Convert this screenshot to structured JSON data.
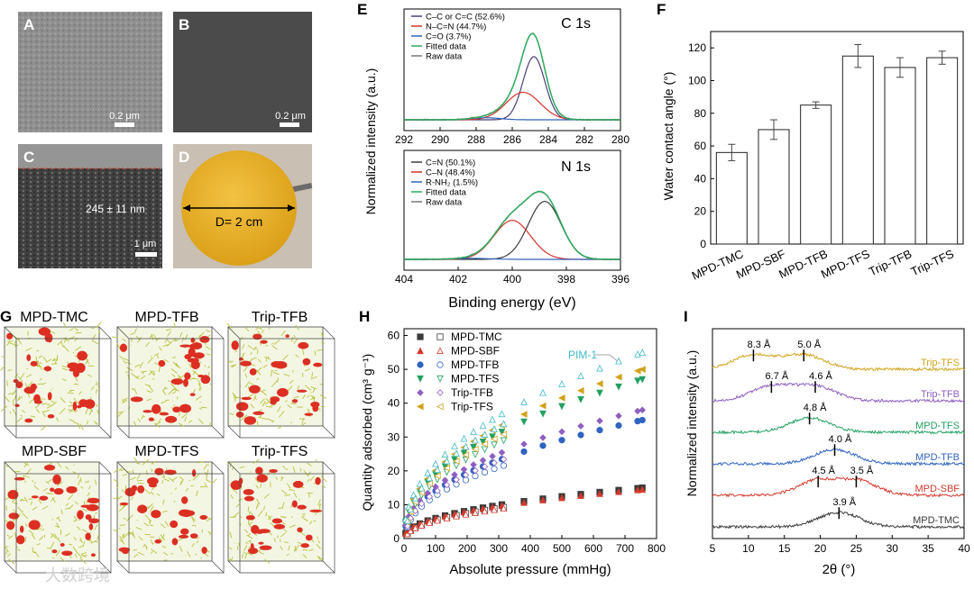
{
  "panel_letters": [
    "A",
    "B",
    "C",
    "D",
    "E",
    "F",
    "G",
    "H",
    "I"
  ],
  "sem": {
    "a_scale": "0.2 μm",
    "b_scale": "0.2 μm",
    "c_thickness": "245 ± 11 nm",
    "c_scale": "1 μm",
    "d_diameter": "D= 2 cm"
  },
  "models": {
    "labels": [
      "MPD-TMC",
      "MPD-TFB",
      "Trip-TFB",
      "MPD-SBF",
      "MPD-TFS",
      "Trip-TFS"
    ]
  },
  "watermark": "大数跨境",
  "colors": {
    "cc": "#4a3f7a",
    "cn": "#d4322b",
    "co": "#3062b8",
    "fit": "#2eaa5e",
    "raw": "#777777",
    "cnN": "#3b3b3b",
    "mpd_tmc": "#3a3a3a",
    "mpd_sbf": "#d33a2c",
    "mpd_tfb": "#2f63c0",
    "mpd_tfs": "#23a060",
    "trip_tfb": "#8e5fc0",
    "trip_tfs": "#d1a21a",
    "pim": "#3fb9c9"
  },
  "chart_data": [
    {
      "panel": "E-top",
      "type": "line",
      "title": "C 1s",
      "ylabel": "Normalized intensity (a.u.)",
      "xlim": [
        292,
        280
      ],
      "xticks": [
        292,
        290,
        288,
        286,
        284,
        282,
        280
      ],
      "legend": [
        "C–C or C=C (52.6%)",
        "N–C=N (44.7%)",
        "C=O (3.7%)",
        "Fitted data",
        "Raw data"
      ],
      "peaks": [
        {
          "name": "C–C or C=C",
          "center": 284.8,
          "height": 0.62,
          "width": 0.9
        },
        {
          "name": "N–C=N",
          "center": 285.4,
          "height": 0.27,
          "width": 1.4
        },
        {
          "name": "C=O",
          "center": 287.5,
          "height": 0.02,
          "width": 1.2
        }
      ]
    },
    {
      "panel": "E-bottom",
      "type": "line",
      "title": "N 1s",
      "xlabel": "Binding energy (eV)",
      "xlim": [
        404,
        396
      ],
      "xticks": [
        404,
        402,
        400,
        398,
        396
      ],
      "legend": [
        "C=N (50.1%)",
        "C–N (48.4%)",
        "R-NH₂ (1.5%)",
        "Fitted data",
        "Raw data"
      ],
      "peaks": [
        {
          "name": "C=N",
          "center": 398.8,
          "height": 0.58,
          "width": 0.9
        },
        {
          "name": "C–N",
          "center": 400.0,
          "height": 0.39,
          "width": 1.0
        },
        {
          "name": "R-NH2",
          "center": 401.5,
          "height": 0.01,
          "width": 1.0
        }
      ]
    },
    {
      "panel": "F",
      "type": "bar",
      "ylabel": "Water contact angle (°)",
      "ylim": [
        0,
        130
      ],
      "yticks": [
        0,
        20,
        40,
        60,
        80,
        100,
        120
      ],
      "categories": [
        "MPD-TMC",
        "MPD-SBF",
        "MPD-TFB",
        "MPD-TFS",
        "Trip-TFB",
        "Trip-TFS"
      ],
      "values": [
        56,
        70,
        85,
        115,
        108,
        114
      ],
      "errors": [
        5,
        6,
        2,
        7,
        6,
        4
      ]
    },
    {
      "panel": "H",
      "type": "scatter",
      "xlabel": "Absolute pressure (mmHg)",
      "ylabel": "Quantity adsorbed (cm³ g⁻¹)",
      "xlim": [
        0,
        800
      ],
      "ylim": [
        0,
        62
      ],
      "xticks": [
        0,
        100,
        200,
        300,
        400,
        500,
        600,
        700,
        800
      ],
      "yticks": [
        0,
        10,
        20,
        30,
        40,
        50,
        60
      ],
      "annotation": "PIM-1",
      "series": [
        {
          "name": "MPD-TMC",
          "final": 15,
          "coef": 0.42
        },
        {
          "name": "MPD-SBF",
          "final": 14.5,
          "coef": 0.41
        },
        {
          "name": "MPD-TFB",
          "final": 35,
          "coef": 0.98
        },
        {
          "name": "MPD-TFS",
          "final": 47,
          "coef": 1.3
        },
        {
          "name": "Trip-TFB",
          "final": 38,
          "coef": 1.06
        },
        {
          "name": "Trip-TFS",
          "final": 50,
          "coef": 1.4
        },
        {
          "name": "PIM-1",
          "final": 55,
          "coef": 1.55
        }
      ]
    },
    {
      "panel": "I",
      "type": "line",
      "xlabel": "2θ (°)",
      "ylabel": "Normalized intensity (a.u.)",
      "xlim": [
        5,
        40
      ],
      "xticks": [
        5,
        10,
        15,
        20,
        25,
        30,
        35,
        40
      ],
      "series": [
        {
          "name": "MPD-TMC",
          "peaks": [
            {
              "x": 22.6,
              "label": "3.9 Å"
            }
          ]
        },
        {
          "name": "MPD-SBF",
          "peaks": [
            {
              "x": 19.7,
              "label": "4.5 Å"
            },
            {
              "x": 25.0,
              "label": "3.5 Å"
            }
          ]
        },
        {
          "name": "MPD-TFB",
          "peaks": [
            {
              "x": 22.0,
              "label": "4.0 Å"
            }
          ]
        },
        {
          "name": "MPD-TFS",
          "peaks": [
            {
              "x": 18.5,
              "label": "4.8 Å"
            }
          ]
        },
        {
          "name": "Trip-TFB",
          "peaks": [
            {
              "x": 13.2,
              "label": "6.7 Å"
            },
            {
              "x": 19.3,
              "label": "4.6 Å"
            }
          ]
        },
        {
          "name": "Trip-TFS",
          "peaks": [
            {
              "x": 10.7,
              "label": "8.3 Å"
            },
            {
              "x": 17.7,
              "label": "5.0 Å"
            }
          ]
        }
      ]
    }
  ]
}
